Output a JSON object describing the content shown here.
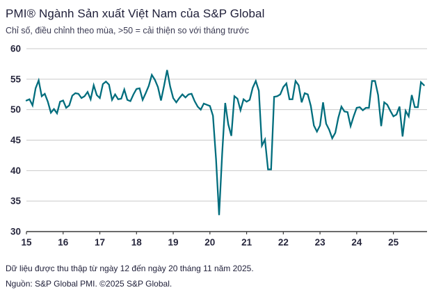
{
  "header": {
    "title": "PMI® Ngành Sản xuất Việt Nam của S&P Global",
    "subtitle": "Chỉ số, điều chỉnh theo mùa, >50 = cải thiện so với tháng trước"
  },
  "footer": {
    "line1": "Dữ liệu được thu thập từ ngày 12 đến ngày 20 tháng 11 năm 2025.",
    "line2": "Nguồn: S&P Global PMI. ©2025 S&P Global."
  },
  "colors": {
    "line": "#006d7d",
    "grid": "#c9c9c9",
    "axis": "#3a3a3a",
    "tick_text": "#26263c"
  },
  "chart_data": {
    "type": "line",
    "title": "PMI® Ngành Sản xuất Việt Nam của S&P Global",
    "subtitle": "Chỉ số, điều chỉnh theo mùa, >50 = cải thiện so với tháng trước",
    "xlabel": "",
    "ylabel": "",
    "ylim": [
      30,
      60
    ],
    "y_ticks": [
      30,
      35,
      40,
      45,
      50,
      55,
      60
    ],
    "grid": "horizontal",
    "legend_position": "none",
    "x_start_month": "2015-01",
    "x_end_month": "2025-11",
    "x_tick_labels": [
      "15",
      "16",
      "17",
      "18",
      "19",
      "20",
      "21",
      "22",
      "23",
      "24",
      "25"
    ],
    "x_tick_interval_months": 12,
    "series": [
      {
        "name": "PMI",
        "color": "#006d7d",
        "values": [
          51.5,
          51.7,
          50.7,
          53.5,
          54.8,
          52.2,
          52.6,
          51.3,
          49.5,
          50.1,
          49.4,
          51.3,
          51.5,
          50.3,
          50.7,
          52.3,
          52.7,
          52.6,
          51.9,
          52.2,
          52.9,
          51.7,
          54.0,
          52.4,
          51.9,
          54.2,
          54.6,
          54.1,
          51.6,
          52.5,
          51.7,
          51.8,
          53.3,
          51.6,
          51.4,
          52.5,
          53.4,
          53.5,
          51.6,
          52.7,
          53.9,
          55.7,
          54.9,
          53.7,
          51.5,
          53.9,
          56.5,
          53.8,
          51.9,
          51.2,
          51.9,
          52.5,
          52.0,
          52.5,
          52.6,
          51.4,
          50.5,
          50.0,
          51.0,
          50.8,
          50.6,
          49.0,
          41.9,
          32.7,
          42.7,
          51.1,
          47.6,
          45.7,
          52.2,
          51.8,
          49.9,
          51.7,
          51.3,
          51.6,
          53.6,
          54.7,
          53.1,
          44.1,
          45.1,
          40.2,
          40.2,
          52.1,
          52.2,
          52.5,
          53.7,
          54.3,
          51.7,
          51.7,
          54.7,
          54.0,
          51.2,
          52.7,
          52.5,
          50.6,
          47.4,
          46.4,
          47.4,
          51.2,
          47.7,
          46.7,
          45.3,
          46.2,
          48.7,
          50.5,
          49.7,
          49.6,
          47.3,
          48.9,
          50.3,
          50.4,
          49.9,
          50.3,
          50.3,
          54.7,
          54.7,
          52.4,
          47.3,
          51.2,
          50.8,
          49.8,
          48.9,
          49.2,
          50.5,
          45.6,
          49.8,
          48.9,
          52.4,
          50.4,
          50.4,
          54.5,
          54.0
        ]
      }
    ]
  }
}
